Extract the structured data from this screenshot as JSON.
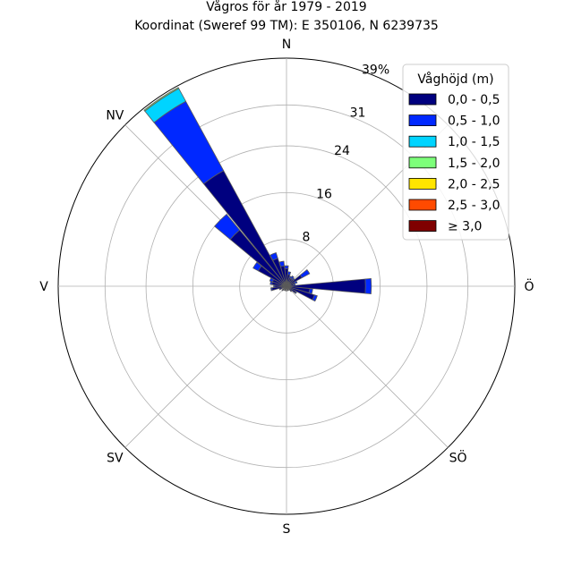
{
  "chart_data": {
    "type": "windrose",
    "title_line1": "Vågros för år 1979 - 2019",
    "title_line2": "Koordinat (Sweref 99 TM): E 350106, N 6239735",
    "unit": "%",
    "rmax": 39,
    "ring_values": [
      8,
      16,
      24,
      31,
      39
    ],
    "ring_labels": [
      "8",
      "16",
      "24",
      "31",
      "39%"
    ],
    "directions": [
      {
        "label": "N",
        "angle": 0
      },
      {
        "label": "NV",
        "angle": 315
      },
      {
        "label": "V",
        "angle": 270
      },
      {
        "label": "SV",
        "angle": 225
      },
      {
        "label": "S",
        "angle": 180
      },
      {
        "label": "SÖ",
        "angle": 135
      },
      {
        "label": "Ö",
        "angle": 90
      }
    ],
    "legend_title": "Våghöjd (m)",
    "bins": [
      {
        "label": "0,0 - 0,5",
        "color": "#00007f"
      },
      {
        "label": "0,5 - 1,0",
        "color": "#0028ff"
      },
      {
        "label": "1,0 - 1,5",
        "color": "#00d4ff"
      },
      {
        "label": "1,5 - 2,0",
        "color": "#7dff7a"
      },
      {
        "label": "2,0 - 2,5",
        "color": "#ffe500"
      },
      {
        "label": "2,5 - 3,0",
        "color": "#ff4a00"
      },
      {
        "label": "≥ 3,0",
        "color": "#7f0000"
      }
    ],
    "sectors": [
      {
        "angle": 0,
        "values": [
          3.0,
          0.5,
          0,
          0,
          0,
          0,
          0
        ]
      },
      {
        "angle": 11.25,
        "values": [
          2.0,
          0.5,
          0,
          0,
          0,
          0,
          0
        ]
      },
      {
        "angle": 22.5,
        "values": [
          1.5,
          0.3,
          0,
          0,
          0,
          0,
          0
        ]
      },
      {
        "angle": 33.75,
        "values": [
          1.5,
          0.5,
          0,
          0,
          0,
          0,
          0
        ]
      },
      {
        "angle": 45,
        "values": [
          1.5,
          0.3,
          0,
          0,
          0,
          0,
          0
        ]
      },
      {
        "angle": 56.25,
        "values": [
          3.0,
          1.5,
          0,
          0,
          0,
          0,
          0
        ]
      },
      {
        "angle": 67.5,
        "values": [
          1.5,
          0.4,
          0,
          0,
          0,
          0,
          0
        ]
      },
      {
        "angle": 78.75,
        "values": [
          1.2,
          0.3,
          0,
          0,
          0,
          0,
          0
        ]
      },
      {
        "angle": 90,
        "values": [
          13.5,
          1.0,
          0,
          0,
          0,
          0,
          0
        ]
      },
      {
        "angle": 101.25,
        "values": [
          4.0,
          0.5,
          0,
          0,
          0,
          0,
          0
        ]
      },
      {
        "angle": 112.5,
        "values": [
          5.0,
          0.5,
          0,
          0,
          0,
          0,
          0
        ]
      },
      {
        "angle": 123.75,
        "values": [
          1.8,
          0.2,
          0,
          0,
          0,
          0,
          0
        ]
      },
      {
        "angle": 135,
        "values": [
          1.2,
          0,
          0,
          0,
          0,
          0,
          0
        ]
      },
      {
        "angle": 157.5,
        "values": [
          0.8,
          0,
          0,
          0,
          0,
          0,
          0
        ]
      },
      {
        "angle": 180,
        "values": [
          0.8,
          0,
          0,
          0,
          0,
          0,
          0
        ]
      },
      {
        "angle": 202.5,
        "values": [
          0.8,
          0,
          0,
          0,
          0,
          0,
          0
        ]
      },
      {
        "angle": 225,
        "values": [
          1.0,
          0,
          0,
          0,
          0,
          0,
          0
        ]
      },
      {
        "angle": 247.5,
        "values": [
          1.3,
          0,
          0,
          0,
          0,
          0,
          0
        ]
      },
      {
        "angle": 258.75,
        "values": [
          2.5,
          0.2,
          0,
          0,
          0,
          0,
          0
        ]
      },
      {
        "angle": 270,
        "values": [
          2.0,
          0.2,
          0,
          0,
          0,
          0,
          0
        ]
      },
      {
        "angle": 281.25,
        "values": [
          2.5,
          0.3,
          0,
          0,
          0,
          0,
          0
        ]
      },
      {
        "angle": 292.5,
        "values": [
          2.5,
          0.5,
          0,
          0,
          0,
          0,
          0
        ]
      },
      {
        "angle": 303.75,
        "values": [
          5.5,
          1.0,
          0,
          0,
          0,
          0,
          0
        ]
      },
      {
        "angle": 315,
        "values": [
          12.5,
          3.5,
          0,
          0,
          0,
          0,
          0
        ]
      },
      {
        "angle": 326.25,
        "values": [
          22.5,
          13.5,
          2.5,
          0.2,
          0,
          0,
          0
        ]
      },
      {
        "angle": 337.5,
        "values": [
          5.0,
          1.0,
          0,
          0,
          0,
          0,
          0
        ]
      },
      {
        "angle": 348.75,
        "values": [
          3.5,
          0.8,
          0,
          0,
          0,
          0,
          0
        ]
      }
    ],
    "grid": true,
    "legend_position": "top-right"
  }
}
